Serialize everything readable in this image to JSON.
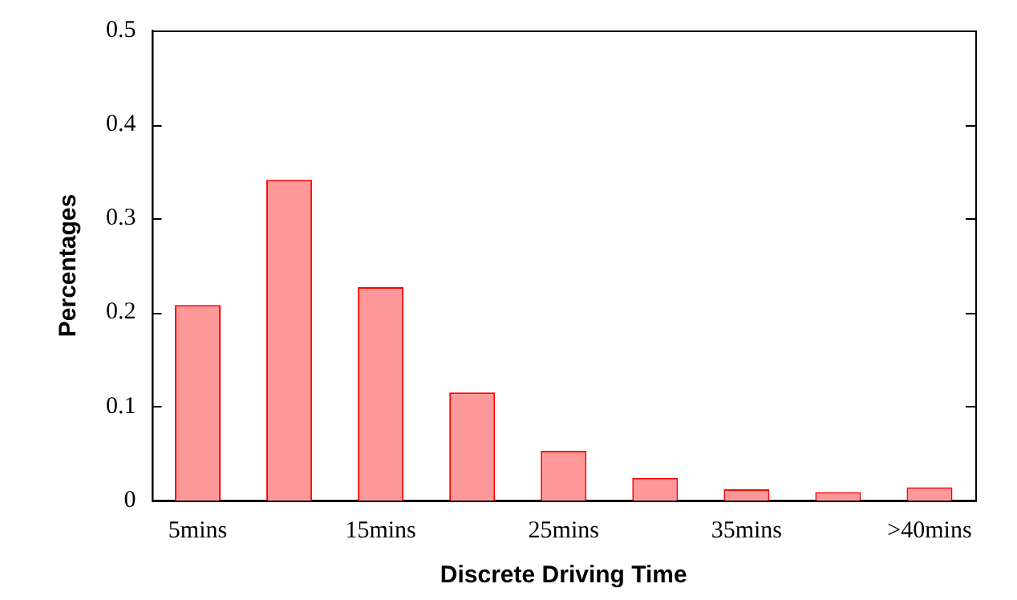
{
  "chart_data": {
    "type": "bar",
    "xlabel": "Discrete Driving Time",
    "ylabel": "Percentages",
    "categories": [
      "5mins",
      null,
      "15mins",
      null,
      "25mins",
      null,
      "35mins",
      null,
      ">40mins"
    ],
    "series": [
      {
        "color": "#ff9999",
        "values": [
          0.208,
          0.341,
          0.227,
          0.115,
          0.053,
          0.024,
          0.012,
          0.009,
          0.014
        ]
      }
    ],
    "ylim": [
      0,
      0.5
    ],
    "yticks": [
      0,
      0.1,
      0.2,
      0.3,
      0.4,
      0.5
    ],
    "grid": false,
    "legend": false
  }
}
